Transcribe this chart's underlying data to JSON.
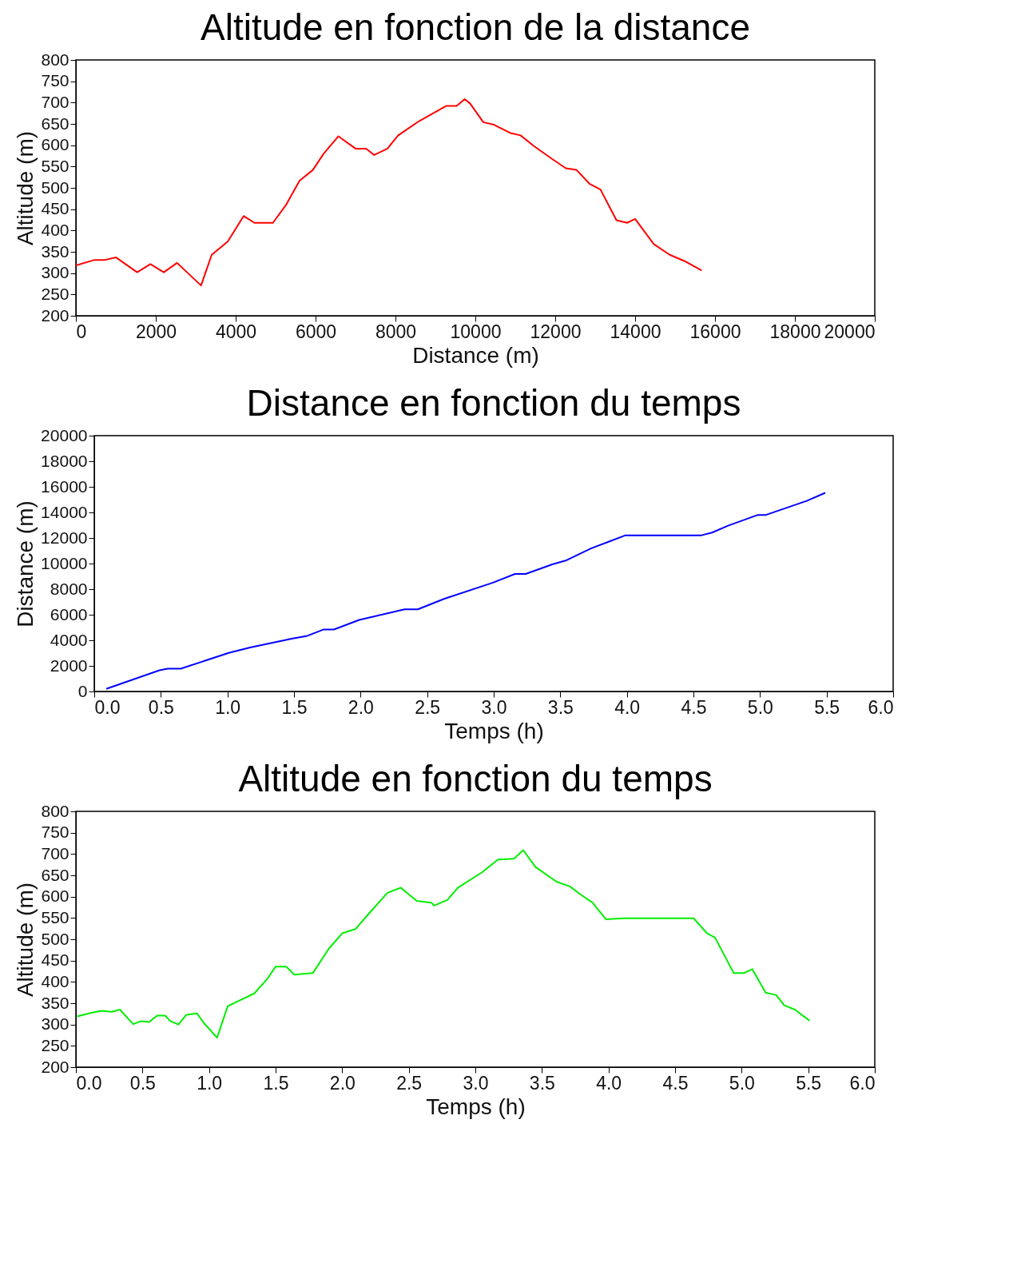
{
  "chart_data": [
    {
      "type": "line",
      "title": "Altitude en fonction de la distance",
      "xlabel": "Distance (m)",
      "ylabel": "Altitude (m)",
      "xlim": [
        0,
        20000
      ],
      "xticks": [
        0,
        2000,
        4000,
        6000,
        8000,
        10000,
        12000,
        14000,
        16000,
        18000,
        20000
      ],
      "ylim": [
        200,
        800
      ],
      "yticks": [
        200,
        250,
        300,
        350,
        400,
        450,
        500,
        550,
        600,
        650,
        700,
        750,
        800
      ],
      "x": [
        0,
        467,
        733,
        1000,
        1533,
        1867,
        2200,
        2533,
        3133,
        3400,
        3800,
        4200,
        4467,
        4933,
        5267,
        5600,
        5933,
        6200,
        6573,
        7000,
        7267,
        7467,
        7800,
        8067,
        8600,
        9267,
        9533,
        9733,
        9867,
        10200,
        10467,
        10867,
        11133,
        11467,
        11933,
        12267,
        12533,
        12867,
        13133,
        13533,
        13800,
        14000,
        14467,
        14867,
        15267,
        15667
      ],
      "series": [
        {
          "color": "#ff0000",
          "values": [
            318,
            331,
            331,
            337,
            302,
            321,
            302,
            324,
            271,
            343,
            374,
            434,
            418,
            418,
            461,
            517,
            542,
            580,
            621,
            592,
            592,
            577,
            592,
            623,
            657,
            692,
            692,
            708,
            698,
            654,
            648,
            629,
            623,
            598,
            567,
            546,
            542,
            509,
            496,
            424,
            418,
            427,
            368,
            343,
            327,
            306
          ]
        }
      ]
    },
    {
      "type": "line",
      "title": "Distance en fonction du temps",
      "xlabel": "Temps (h)",
      "ylabel": "Distance (m)",
      "xlim": [
        0,
        6
      ],
      "xticks": [
        {
          "value": 0,
          "label": "0.0"
        },
        0.5,
        {
          "value": 1,
          "label": "1.0"
        },
        1.5,
        {
          "value": 2,
          "label": "2.0"
        },
        2.5,
        {
          "value": 3,
          "label": "3.0"
        },
        3.5,
        {
          "value": 4,
          "label": "4.0"
        },
        4.5,
        {
          "value": 5,
          "label": "5.0"
        },
        5.5,
        {
          "value": 6,
          "label": "6.0"
        }
      ],
      "ylim": [
        0,
        20000
      ],
      "yticks": [
        0,
        2000,
        4000,
        6000,
        8000,
        10000,
        12000,
        14000,
        16000,
        18000,
        20000
      ],
      "x": [
        0.09,
        0.49,
        0.55,
        0.65,
        1.01,
        1.17,
        1.49,
        1.6,
        1.72,
        1.8,
        1.99,
        2.33,
        2.43,
        2.63,
        2.99,
        3.16,
        3.24,
        3.44,
        3.54,
        3.73,
        3.99,
        4.56,
        4.64,
        4.76,
        4.98,
        5.04,
        5.35,
        5.49
      ],
      "series": [
        {
          "color": "#0000ff",
          "values": [
            200,
            1660,
            1780,
            1780,
            3020,
            3440,
            4140,
            4350,
            4840,
            4840,
            5590,
            6420,
            6420,
            7250,
            8490,
            9190,
            9190,
            9940,
            10230,
            11180,
            12210,
            12210,
            12420,
            12960,
            13790,
            13790,
            14900,
            15530
          ]
        }
      ]
    },
    {
      "type": "line",
      "title": "Altitude en fonction du temps",
      "xlabel": "Temps (h)",
      "ylabel": "Altitude (m)",
      "xlim": [
        0,
        6
      ],
      "xticks": [
        {
          "value": 0,
          "label": "0.0"
        },
        0.5,
        {
          "value": 1,
          "label": "1.0"
        },
        1.5,
        {
          "value": 2,
          "label": "2.0"
        },
        2.5,
        {
          "value": 3,
          "label": "3.0"
        },
        3.5,
        {
          "value": 4,
          "label": "4.0"
        },
        4.5,
        {
          "value": 5,
          "label": "5.0"
        },
        5.5,
        {
          "value": 6,
          "label": "6.0"
        }
      ],
      "ylim": [
        200,
        800
      ],
      "yticks": [
        200,
        250,
        300,
        350,
        400,
        450,
        500,
        550,
        600,
        650,
        700,
        750,
        800
      ],
      "x": [
        0.01,
        0.11,
        0.19,
        0.27,
        0.33,
        0.43,
        0.49,
        0.55,
        0.61,
        0.67,
        0.71,
        0.77,
        0.83,
        0.91,
        0.96,
        1.06,
        1.14,
        1.2,
        1.34,
        1.44,
        1.5,
        1.58,
        1.64,
        1.78,
        1.9,
        2.0,
        2.1,
        2.18,
        2.34,
        2.44,
        2.56,
        2.67,
        2.69,
        2.79,
        2.87,
        3.05,
        3.17,
        3.29,
        3.36,
        3.45,
        3.61,
        3.71,
        3.79,
        3.88,
        3.98,
        4.12,
        4.64,
        4.74,
        4.8,
        4.94,
        5.02,
        5.08,
        5.18,
        5.26,
        5.32,
        5.4,
        5.51
      ],
      "series": [
        {
          "color": "#00ee00",
          "values": [
            319,
            327,
            332,
            330,
            335,
            301,
            308,
            306,
            321,
            321,
            308,
            300,
            323,
            326,
            304,
            269,
            343,
            352,
            373,
            408,
            436,
            436,
            417,
            421,
            478,
            514,
            524,
            553,
            609,
            621,
            590,
            586,
            579,
            592,
            621,
            657,
            687,
            689,
            709,
            670,
            635,
            624,
            605,
            586,
            547,
            549,
            549,
            514,
            504,
            421,
            421,
            430,
            375,
            369,
            345,
            335,
            309
          ]
        }
      ]
    }
  ]
}
